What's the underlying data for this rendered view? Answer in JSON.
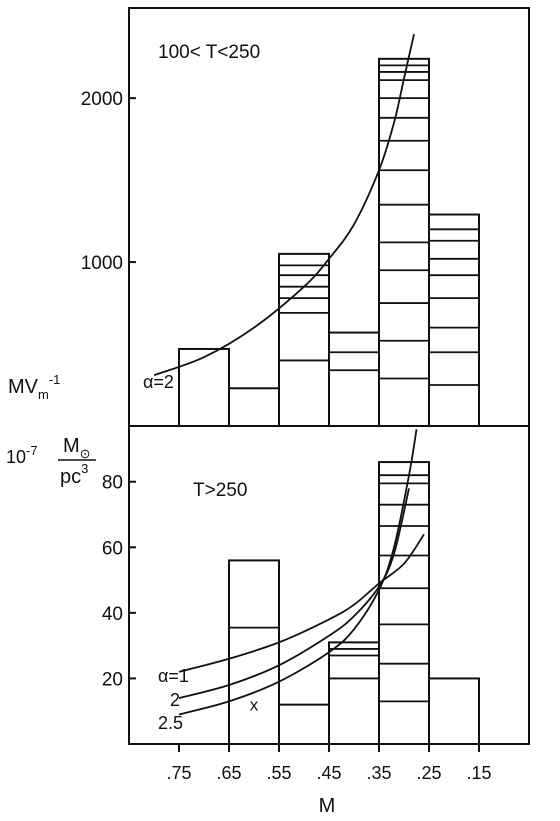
{
  "chart_data": [
    {
      "type": "bar",
      "panel": "upper",
      "annotation": "100< T<250",
      "x_categories": [
        ".75",
        ".65",
        ".55",
        ".45",
        ".35",
        ".25",
        ".15"
      ],
      "xlim": [
        0.85,
        0.05
      ],
      "ylim": [
        0,
        2550
      ],
      "y_ticks": [
        "1000",
        "2000"
      ],
      "bars": [
        {
          "x0": 0.75,
          "x1": 0.65,
          "top": 470,
          "dividers": []
        },
        {
          "x0": 0.65,
          "x1": 0.55,
          "top": 230,
          "dividers": []
        },
        {
          "x0": 0.55,
          "x1": 0.45,
          "top": 1050,
          "dividers": [
            400,
            690,
            780,
            850,
            920,
            980
          ]
        },
        {
          "x0": 0.45,
          "x1": 0.35,
          "top": 570,
          "dividers": [
            340,
            450
          ]
        },
        {
          "x0": 0.35,
          "x1": 0.25,
          "top": 2240,
          "dividers": [
            290,
            520,
            750,
            950,
            1120,
            1350,
            1560,
            1740,
            1880,
            2000,
            2110,
            2160,
            2200
          ]
        },
        {
          "x0": 0.25,
          "x1": 0.15,
          "top": 1290,
          "dividers": [
            250,
            450,
            600,
            780,
            920,
            1020,
            1130,
            1200
          ]
        }
      ],
      "curves": [
        {
          "label": "α=2",
          "points": [
            [
              0.8,
              310
            ],
            [
              0.7,
              420
            ],
            [
              0.6,
              600
            ],
            [
              0.5,
              850
            ],
            [
              0.45,
              1020
            ],
            [
              0.4,
              1230
            ],
            [
              0.35,
              1560
            ],
            [
              0.32,
              1850
            ],
            [
              0.3,
              2120
            ],
            [
              0.28,
              2390
            ]
          ]
        }
      ]
    },
    {
      "type": "bar",
      "panel": "lower",
      "annotation": "T>250",
      "x_categories": [
        ".75",
        ".65",
        ".55",
        ".45",
        ".35",
        ".25",
        ".15"
      ],
      "xlim": [
        0.85,
        0.05
      ],
      "ylim": [
        0,
        97
      ],
      "y_ticks": [
        "20",
        "40",
        "60",
        "80"
      ],
      "bars": [
        {
          "x0": 0.65,
          "x1": 0.55,
          "top": 56,
          "dividers": [
            35.5
          ]
        },
        {
          "x0": 0.55,
          "x1": 0.45,
          "top": 12,
          "dividers": []
        },
        {
          "x0": 0.45,
          "x1": 0.35,
          "top": 31,
          "dividers": [
            20,
            27,
            29
          ]
        },
        {
          "x0": 0.35,
          "x1": 0.25,
          "top": 86,
          "dividers": [
            13,
            24.5,
            36.5,
            47.5,
            57.5,
            66.5,
            73,
            79.5,
            82
          ]
        },
        {
          "x0": 0.25,
          "x1": 0.15,
          "top": 20,
          "dividers": []
        }
      ],
      "curves": [
        {
          "label": "α=1",
          "points": [
            [
              0.75,
              22
            ],
            [
              0.65,
              26
            ],
            [
              0.55,
              31
            ],
            [
              0.45,
              38
            ],
            [
              0.4,
              42.5
            ],
            [
              0.35,
              49
            ],
            [
              0.3,
              55
            ],
            [
              0.26,
              64
            ]
          ]
        },
        {
          "label": "2",
          "points": [
            [
              0.75,
              14
            ],
            [
              0.65,
              18
            ],
            [
              0.55,
              24
            ],
            [
              0.45,
              33
            ],
            [
              0.4,
              39
            ],
            [
              0.35,
              48
            ],
            [
              0.32,
              58
            ],
            [
              0.29,
              78
            ]
          ]
        },
        {
          "label": "2.5",
          "points": [
            [
              0.75,
              9
            ],
            [
              0.65,
              13
            ],
            [
              0.55,
              19
            ],
            [
              0.45,
              28
            ],
            [
              0.4,
              35
            ],
            [
              0.35,
              47
            ],
            [
              0.32,
              60
            ],
            [
              0.29,
              82
            ],
            [
              0.275,
              96
            ]
          ]
        }
      ],
      "markers": [
        {
          "symbol": "x",
          "x": 0.6,
          "y": 12
        }
      ]
    }
  ],
  "axes": {
    "xlabel": "M",
    "ylabel_line1_base": "MV",
    "ylabel_line1_sub": "m",
    "ylabel_line1_sup": "-1",
    "ylabel_line2_prefix": "10",
    "ylabel_line2_exp": "-7",
    "ylabel_line2_num": "M",
    "ylabel_line2_num_symbol": "⊙",
    "ylabel_line2_den": "pc",
    "ylabel_line2_den_sup": "3"
  }
}
